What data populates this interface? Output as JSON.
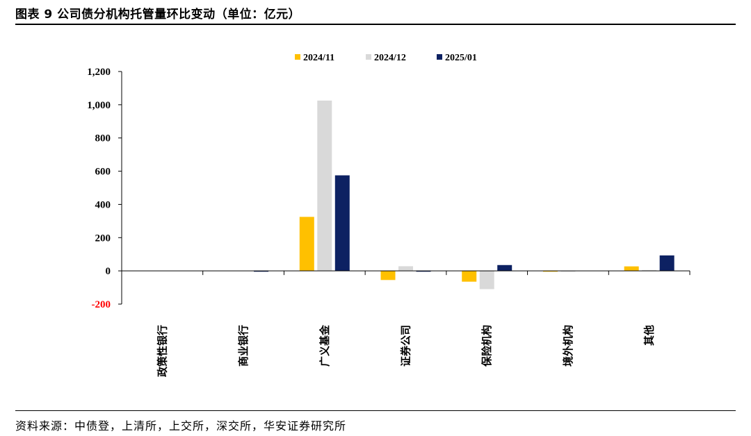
{
  "title": "图表 9 公司债分机构托管量环比变动（单位：亿元）",
  "source": "资料来源：中债登，上清所，上交所，深交所，华安证券研究所",
  "chart_data": {
    "type": "bar",
    "title": "",
    "xlabel": "",
    "ylabel": "",
    "ylim": [
      -200,
      1200
    ],
    "yticks": [
      -200,
      0,
      200,
      400,
      600,
      800,
      1000,
      1200
    ],
    "ytick_labels": [
      "-200",
      "0",
      "200",
      "400",
      "600",
      "800",
      "1,000",
      "1,200"
    ],
    "negative_tick_color": "#ff0000",
    "grid": false,
    "legend_position": "top",
    "categories": [
      "政策性银行",
      "商业银行",
      "广义基金",
      "证券公司",
      "保险机构",
      "境外机构",
      "其他"
    ],
    "series": [
      {
        "name": "2024/11",
        "color": "#ffc000",
        "values": [
          0,
          0,
          325,
          -55,
          -65,
          -5,
          27
        ]
      },
      {
        "name": "2024/12",
        "color": "#d9d9d9",
        "values": [
          0,
          0,
          1025,
          28,
          -110,
          -5,
          5
        ]
      },
      {
        "name": "2025/01",
        "color": "#0d2162",
        "values": [
          0,
          -5,
          575,
          -5,
          35,
          0,
          93
        ]
      }
    ]
  }
}
